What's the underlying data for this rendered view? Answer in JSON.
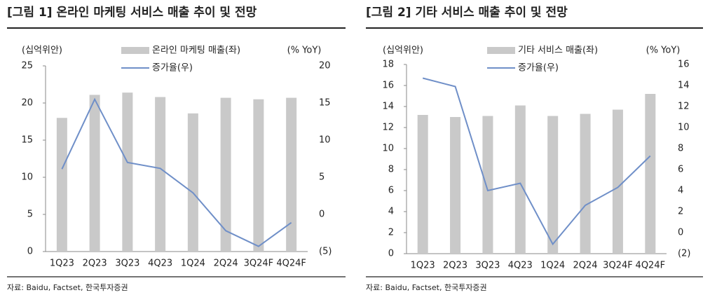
{
  "chart_data": [
    {
      "type": "bar-line",
      "title": "[그림 1] 온라인 마케팅 서비스 매출 추이 및 전망",
      "y_label": "(십억위안)",
      "y2_label": "(% YoY)",
      "source": "자료: Baidu, Factset, 한국투자증권",
      "categories": [
        "1Q23",
        "2Q23",
        "3Q23",
        "4Q23",
        "1Q24",
        "2Q24",
        "3Q24F",
        "4Q24F"
      ],
      "series": [
        {
          "name": "온라인 마케팅 매출(좌)",
          "type": "bar",
          "color": "#c9c9c9",
          "values": [
            18.0,
            21.1,
            21.4,
            20.8,
            18.6,
            20.7,
            20.5,
            20.7
          ]
        },
        {
          "name": "증가율(우)",
          "type": "line",
          "axis": "y2",
          "color": "#6f8fc8",
          "values": [
            6.1,
            15.5,
            7.0,
            6.2,
            2.9,
            -2.2,
            -4.3,
            -1.1
          ]
        }
      ],
      "ylim": [
        0,
        25
      ],
      "yticks": [
        0,
        5,
        10,
        15,
        20,
        25
      ],
      "y2lim": [
        -5,
        20
      ],
      "y2ticks": [
        {
          "value": -5,
          "label": "(5)"
        },
        0,
        5,
        10,
        15,
        20
      ],
      "grid": false
    },
    {
      "type": "bar-line",
      "title": "[그림 2] 기타 서비스 매출 추이 및 전망",
      "y_label": "(십억위안)",
      "y2_label": "(% YoY)",
      "source": "자료: Baidu, Factset, 한국투자증권",
      "categories": [
        "1Q23",
        "2Q23",
        "3Q23",
        "4Q23",
        "1Q24",
        "2Q24",
        "3Q24F",
        "4Q24F"
      ],
      "series": [
        {
          "name": "기타 서비스 매출(좌)",
          "type": "bar",
          "color": "#c9c9c9",
          "values": [
            13.2,
            13.0,
            13.1,
            14.1,
            13.1,
            13.3,
            13.7,
            15.2
          ]
        },
        {
          "name": "증가율(우)",
          "type": "line",
          "axis": "y2",
          "color": "#6f8fc8",
          "values": [
            14.7,
            13.9,
            4.0,
            4.7,
            -1.1,
            2.6,
            4.3,
            7.3
          ]
        }
      ],
      "ylim": [
        0,
        18
      ],
      "yticks": [
        0,
        2,
        4,
        6,
        8,
        10,
        12,
        14,
        16,
        18
      ],
      "y2lim": [
        -2,
        16
      ],
      "y2ticks": [
        {
          "value": -2,
          "label": "(2)"
        },
        0,
        2,
        4,
        6,
        8,
        10,
        12,
        14,
        16
      ],
      "grid": false
    }
  ]
}
